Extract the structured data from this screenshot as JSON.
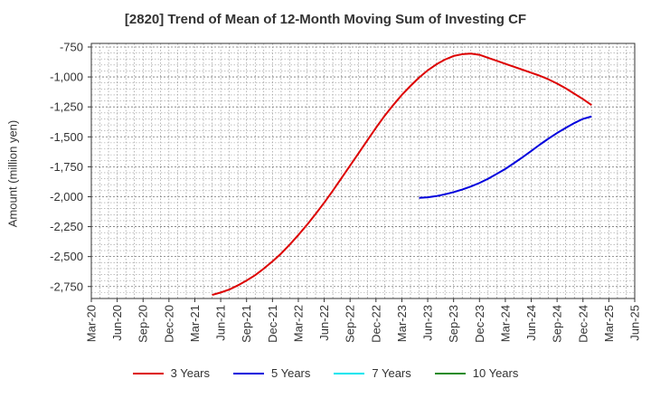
{
  "title": "[2820]  Trend of Mean of 12-Month Moving Sum of Investing CF",
  "chart_data": {
    "type": "line",
    "title": "[2820]  Trend of Mean of 12-Month Moving Sum of Investing CF",
    "xlabel": "",
    "ylabel": "Amount (million yen)",
    "ylim": [
      -2850,
      -720
    ],
    "yticks": [
      -750,
      -1000,
      -1250,
      -1500,
      -1750,
      -2000,
      -2250,
      -2500,
      -2750
    ],
    "ytick_labels": [
      "-750",
      "-1,000",
      "-1,250",
      "-1,500",
      "-1,750",
      "-2,000",
      "-2,250",
      "-2,500",
      "-2,750"
    ],
    "xlim": [
      "2020-03",
      "2025-06"
    ],
    "xtick_labels": [
      "Mar-20",
      "Jun-20",
      "Sep-20",
      "Dec-20",
      "Mar-21",
      "Jun-21",
      "Sep-21",
      "Dec-21",
      "Mar-22",
      "Jun-22",
      "Sep-22",
      "Dec-22",
      "Mar-23",
      "Jun-23",
      "Sep-23",
      "Dec-23",
      "Mar-24",
      "Jun-24",
      "Sep-24",
      "Dec-24",
      "Mar-25",
      "Jun-25"
    ],
    "grid": true,
    "legend_position": "bottom",
    "series": [
      {
        "name": "3 Years",
        "color": "#dd0000",
        "points": [
          [
            "2021-05",
            -2820
          ],
          [
            "2021-06",
            -2800
          ],
          [
            "2021-07",
            -2775
          ],
          [
            "2021-08",
            -2740
          ],
          [
            "2021-09",
            -2700
          ],
          [
            "2021-10",
            -2655
          ],
          [
            "2021-11",
            -2600
          ],
          [
            "2021-12",
            -2540
          ],
          [
            "2022-01",
            -2475
          ],
          [
            "2022-02",
            -2400
          ],
          [
            "2022-03",
            -2320
          ],
          [
            "2022-04",
            -2235
          ],
          [
            "2022-05",
            -2145
          ],
          [
            "2022-06",
            -2050
          ],
          [
            "2022-07",
            -1950
          ],
          [
            "2022-08",
            -1845
          ],
          [
            "2022-09",
            -1740
          ],
          [
            "2022-10",
            -1635
          ],
          [
            "2022-11",
            -1530
          ],
          [
            "2022-12",
            -1425
          ],
          [
            "2023-01",
            -1325
          ],
          [
            "2023-02",
            -1235
          ],
          [
            "2023-03",
            -1150
          ],
          [
            "2023-04",
            -1075
          ],
          [
            "2023-05",
            -1005
          ],
          [
            "2023-06",
            -945
          ],
          [
            "2023-07",
            -895
          ],
          [
            "2023-08",
            -855
          ],
          [
            "2023-09",
            -825
          ],
          [
            "2023-10",
            -810
          ],
          [
            "2023-11",
            -805
          ],
          [
            "2023-12",
            -815
          ],
          [
            "2024-01",
            -840
          ],
          [
            "2024-02",
            -865
          ],
          [
            "2024-03",
            -890
          ],
          [
            "2024-04",
            -915
          ],
          [
            "2024-05",
            -940
          ],
          [
            "2024-06",
            -965
          ],
          [
            "2024-07",
            -990
          ],
          [
            "2024-08",
            -1020
          ],
          [
            "2024-09",
            -1055
          ],
          [
            "2024-10",
            -1095
          ],
          [
            "2024-11",
            -1140
          ],
          [
            "2024-12",
            -1185
          ],
          [
            "2025-01",
            -1235
          ]
        ]
      },
      {
        "name": "5 Years",
        "color": "#0000dd",
        "points": [
          [
            "2023-05",
            -2010
          ],
          [
            "2023-06",
            -2005
          ],
          [
            "2023-07",
            -1995
          ],
          [
            "2023-08",
            -1980
          ],
          [
            "2023-09",
            -1962
          ],
          [
            "2023-10",
            -1940
          ],
          [
            "2023-11",
            -1915
          ],
          [
            "2023-12",
            -1885
          ],
          [
            "2024-01",
            -1850
          ],
          [
            "2024-02",
            -1810
          ],
          [
            "2024-03",
            -1768
          ],
          [
            "2024-04",
            -1720
          ],
          [
            "2024-05",
            -1670
          ],
          [
            "2024-06",
            -1618
          ],
          [
            "2024-07",
            -1565
          ],
          [
            "2024-08",
            -1515
          ],
          [
            "2024-09",
            -1468
          ],
          [
            "2024-10",
            -1425
          ],
          [
            "2024-11",
            -1385
          ],
          [
            "2024-12",
            -1350
          ],
          [
            "2025-01",
            -1330
          ]
        ]
      },
      {
        "name": "7 Years",
        "color": "#00e5ee",
        "points": []
      },
      {
        "name": "10 Years",
        "color": "#228b22",
        "points": []
      }
    ]
  }
}
